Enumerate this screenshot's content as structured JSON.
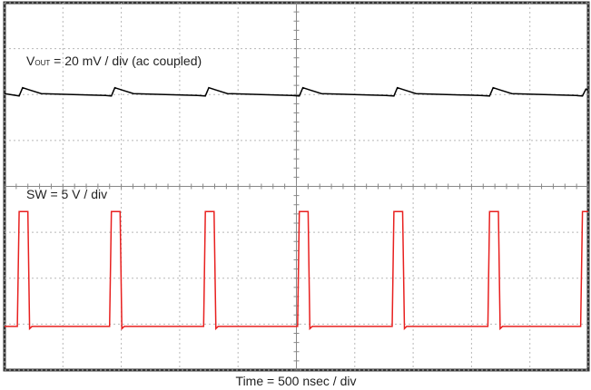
{
  "chart_data": {
    "type": "line",
    "annotations": {
      "vout": {
        "symbol": "V",
        "subscript": "OUT",
        "text": " = 20 mV / div (ac coupled)"
      },
      "sw": "SW = 5 V / div"
    },
    "xlabel": "Time = 500 nsec / div",
    "xlim": [
      0,
      10
    ],
    "ylim": [
      0,
      8
    ],
    "xticks": [
      0,
      1,
      2,
      3,
      4,
      5,
      6,
      7,
      8,
      9,
      10
    ],
    "yticks": [
      0,
      1,
      2,
      3,
      4,
      5,
      6,
      7,
      8
    ],
    "grid": true,
    "series": [
      {
        "name": "VOUT",
        "color": "#000000",
        "x": [
          0,
          0.25,
          0.31,
          0.43,
          0.63,
          1.73,
          1.83,
          1.89,
          2.01,
          2.21,
          3.31,
          3.44,
          3.5,
          3.62,
          3.82,
          4.92,
          5.05,
          5.11,
          5.23,
          5.43,
          6.53,
          6.67,
          6.73,
          6.85,
          7.05,
          8.15,
          8.31,
          8.37,
          8.49,
          8.69,
          9.79,
          9.9,
          9.96,
          10
        ],
        "values": [
          6.02,
          5.97,
          6.15,
          6.1,
          6.02,
          5.98,
          5.97,
          6.15,
          6.1,
          6.02,
          5.98,
          5.97,
          6.15,
          6.1,
          6.02,
          5.98,
          5.97,
          6.15,
          6.1,
          6.02,
          5.98,
          5.97,
          6.15,
          6.1,
          6.02,
          5.98,
          5.97,
          6.15,
          6.1,
          6.02,
          5.98,
          5.97,
          6.12,
          6.1
        ]
      },
      {
        "name": "SW",
        "color": "#e8201f",
        "x": [
          0,
          0.22,
          0.25,
          0.4,
          0.43,
          0.47,
          1.8,
          1.83,
          1.98,
          2.01,
          2.05,
          3.41,
          3.44,
          3.59,
          3.62,
          3.66,
          5.02,
          5.05,
          5.2,
          5.23,
          5.27,
          6.64,
          6.67,
          6.82,
          6.85,
          6.89,
          8.28,
          8.31,
          8.46,
          8.49,
          8.53,
          9.87,
          9.9,
          10
        ],
        "values": [
          0.95,
          0.95,
          3.45,
          3.45,
          0.9,
          0.95,
          0.95,
          3.45,
          3.45,
          0.9,
          0.95,
          0.95,
          3.45,
          3.45,
          0.9,
          0.95,
          0.95,
          3.45,
          3.45,
          0.9,
          0.95,
          0.95,
          3.45,
          3.45,
          0.9,
          0.95,
          0.95,
          3.45,
          3.45,
          0.9,
          0.95,
          0.95,
          3.45,
          3.45
        ]
      }
    ]
  }
}
